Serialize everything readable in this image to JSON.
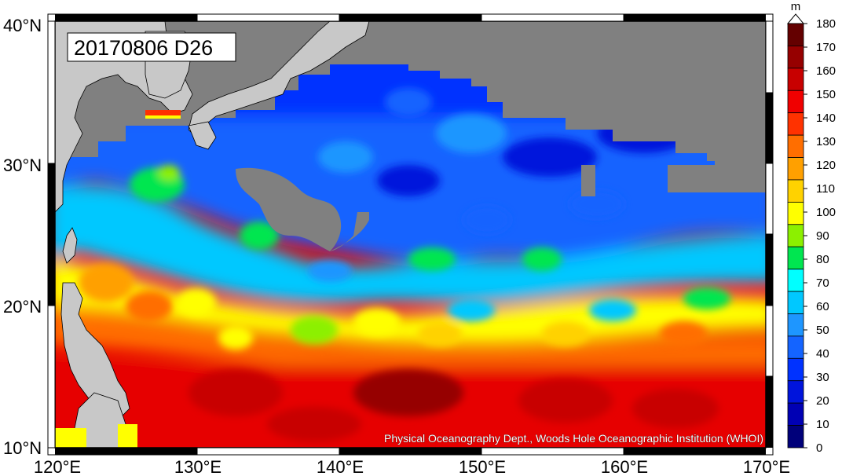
{
  "map_title": "20170806 D26",
  "credit": "Physical Oceanography Dept., Woods Hole Oceanographic Institution (WHOI)",
  "colorbar": {
    "unit": "m",
    "levels": [
      "0",
      "10",
      "20",
      "30",
      "40",
      "50",
      "60",
      "70",
      "80",
      "90",
      "100",
      "110",
      "120",
      "130",
      "140",
      "150",
      "160",
      "170",
      "180"
    ],
    "colors": [
      "#00007a",
      "#0000b4",
      "#0014dc",
      "#0032ff",
      "#1464ff",
      "#1e96ff",
      "#00c8ff",
      "#00ffff",
      "#00e650",
      "#8cf000",
      "#ffff00",
      "#ffd200",
      "#ffa000",
      "#ff6e00",
      "#ff3200",
      "#f00000",
      "#c80000",
      "#960000",
      "#640000"
    ]
  },
  "axes": {
    "lon_labels": [
      "120°E",
      "130°E",
      "140°E",
      "150°E",
      "160°E",
      "170°E"
    ],
    "lat_labels": [
      "10°N",
      "20°N",
      "30°N",
      "40°N"
    ]
  },
  "legend_colors": {
    "land": "#c8c8c8",
    "mask": "#808080"
  }
}
